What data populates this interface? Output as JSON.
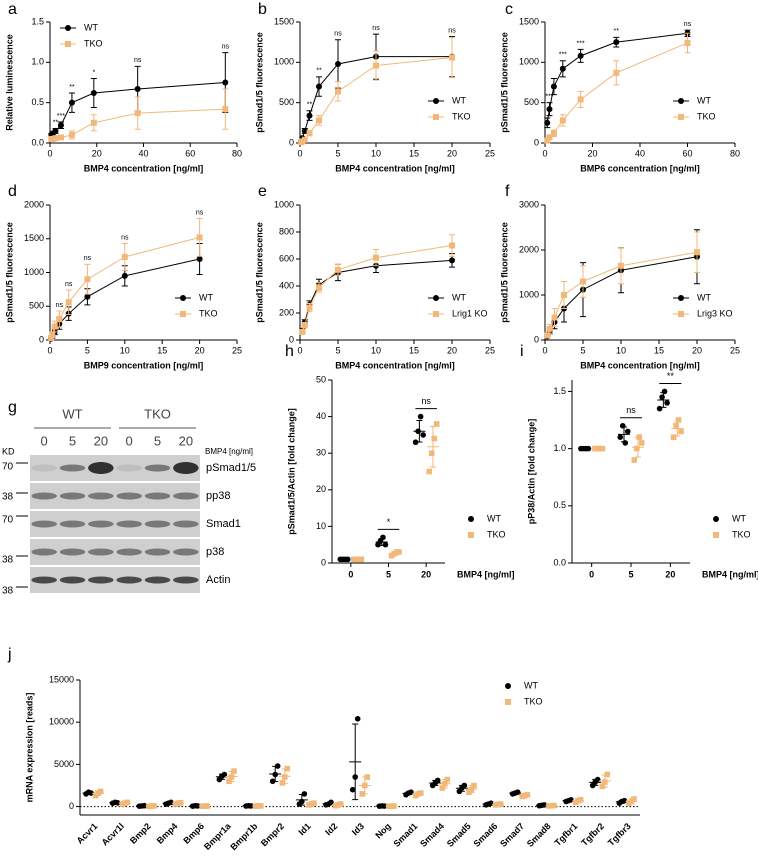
{
  "chart_data": [
    {
      "type": "line",
      "panel": "a",
      "x_label": "BMP4 concentration [ng/ml]",
      "y_label": "Relative luminescence",
      "xlim": [
        0,
        80
      ],
      "xticks": [
        0,
        20,
        40,
        60,
        80
      ],
      "ylim": [
        0,
        1.5
      ],
      "yticks": [
        {
          "value": 0,
          "label": "0.0"
        },
        0.5,
        {
          "value": 1,
          "label": "1.0"
        },
        1.5
      ],
      "x": [
        0.59,
        1.17,
        2.34,
        4.69,
        9.38,
        18.75,
        37.5,
        75
      ],
      "series": [
        {
          "name": "WT",
          "color": "#000000",
          "marker": "circle",
          "values": [
            0.1,
            0.12,
            0.15,
            0.22,
            0.5,
            0.62,
            0.67,
            0.75
          ],
          "errors": [
            0.02,
            0.02,
            0.03,
            0.04,
            0.12,
            0.18,
            0.28,
            0.37
          ]
        },
        {
          "name": "TKO",
          "color": "#f2b87a",
          "marker": "square",
          "values": [
            0.05,
            0.05,
            0.06,
            0.07,
            0.1,
            0.25,
            0.37,
            0.42
          ],
          "errors": [
            0.01,
            0.01,
            0.02,
            0.02,
            0.05,
            0.1,
            0.2,
            0.25
          ]
        }
      ],
      "annotations": [
        null,
        null,
        "**",
        "***",
        "**",
        "*",
        "ns",
        "ns"
      ],
      "legend": "upper left"
    },
    {
      "type": "line",
      "panel": "b",
      "x_label": "BMP4 concentration [ng/ml]",
      "y_label": "pSmad1/5 fluorescence",
      "xlim": [
        0,
        25
      ],
      "xticks": [
        0,
        5,
        10,
        15,
        20,
        25
      ],
      "ylim": [
        0,
        1500
      ],
      "yticks": [
        0,
        500,
        1000,
        1500
      ],
      "x": [
        0.16,
        0.31,
        0.63,
        1.25,
        2.5,
        5,
        10,
        20
      ],
      "series": [
        {
          "name": "WT",
          "color": "#000000",
          "marker": "circle",
          "values": [
            20,
            60,
            150,
            340,
            700,
            980,
            1070,
            1070
          ],
          "errors": [
            10,
            15,
            30,
            60,
            120,
            300,
            280,
            250
          ]
        },
        {
          "name": "TKO",
          "color": "#f2b87a",
          "marker": "square",
          "values": [
            10,
            20,
            40,
            120,
            280,
            640,
            960,
            1060
          ],
          "errors": [
            5,
            10,
            15,
            30,
            60,
            120,
            180,
            250
          ]
        }
      ],
      "annotations": [
        null,
        null,
        null,
        "**",
        "**",
        "ns",
        "ns",
        "ns"
      ],
      "legend": "lower right"
    },
    {
      "type": "line",
      "panel": "c",
      "x_label": "BMP6 concentration [ng/ml]",
      "y_label": "pSmad1/5 fluorescence",
      "xlim": [
        0,
        80
      ],
      "xticks": [
        0,
        20,
        40,
        60,
        80
      ],
      "ylim": [
        0,
        1500
      ],
      "yticks": [
        0,
        500,
        1000,
        1500
      ],
      "x": [
        0.94,
        1.88,
        3.75,
        7.5,
        15,
        30,
        60
      ],
      "series": [
        {
          "name": "WT",
          "color": "#000000",
          "marker": "circle",
          "values": [
            250,
            420,
            700,
            920,
            1080,
            1250,
            1360
          ],
          "errors": [
            60,
            80,
            100,
            100,
            80,
            60,
            40
          ]
        },
        {
          "name": "TKO",
          "color": "#f2b87a",
          "marker": "square",
          "values": [
            30,
            70,
            120,
            280,
            540,
            870,
            1240
          ],
          "errors": [
            20,
            30,
            40,
            70,
            100,
            150,
            120
          ]
        }
      ],
      "annotations": [
        null,
        "***",
        null,
        "***",
        "***",
        "**",
        "ns"
      ],
      "legend": "lower right"
    },
    {
      "type": "line",
      "panel": "d",
      "x_label": "BMP9 concentration [ng/ml]",
      "y_label": "pSmad1/5 fluorescence",
      "xlim": [
        0,
        25
      ],
      "xticks": [
        0,
        5,
        10,
        15,
        20,
        25
      ],
      "ylim": [
        0,
        2000
      ],
      "yticks": [
        0,
        500,
        1000,
        1500,
        2000
      ],
      "x": [
        0.16,
        0.31,
        0.63,
        1.25,
        2.5,
        5,
        10,
        20
      ],
      "series": [
        {
          "name": "WT",
          "color": "#000000",
          "marker": "circle",
          "values": [
            20,
            50,
            120,
            240,
            390,
            640,
            950,
            1200
          ],
          "errors": [
            10,
            20,
            40,
            80,
            100,
            120,
            150,
            230
          ]
        },
        {
          "name": "TKO",
          "color": "#f2b87a",
          "marker": "square",
          "values": [
            30,
            80,
            200,
            310,
            560,
            900,
            1230,
            1520
          ],
          "errors": [
            20,
            40,
            80,
            120,
            180,
            220,
            200,
            280
          ]
        }
      ],
      "annotations": [
        null,
        null,
        null,
        "ns",
        "ns",
        "ns",
        "ns",
        "ns"
      ],
      "legend": "lower right"
    },
    {
      "type": "line",
      "panel": "e",
      "x_label": "BMP4 concentration [ng/ml]",
      "y_label": "pSmad1/5 fluorescence",
      "xlim": [
        0,
        25
      ],
      "xticks": [
        0,
        5,
        10,
        15,
        20,
        25
      ],
      "ylim": [
        0,
        1000
      ],
      "yticks": [
        0,
        200,
        400,
        600,
        800,
        1000
      ],
      "x": [
        0.31,
        0.63,
        1.25,
        2.5,
        5,
        10,
        20
      ],
      "series": [
        {
          "name": "WT",
          "color": "#000000",
          "marker": "circle",
          "values": [
            70,
            130,
            260,
            410,
            500,
            550,
            590
          ],
          "errors": [
            15,
            20,
            30,
            40,
            60,
            50,
            50
          ]
        },
        {
          "name": "Lrig1 KO",
          "color": "#f2b87a",
          "marker": "square",
          "values": [
            60,
            110,
            240,
            390,
            520,
            610,
            700
          ],
          "errors": [
            15,
            20,
            30,
            35,
            40,
            60,
            80
          ]
        }
      ],
      "legend": "lower right"
    },
    {
      "type": "line",
      "panel": "f",
      "x_label": "BMP4 concentration [ng/ml]",
      "y_label": "pSmad1/5 fluorescence",
      "xlim": [
        0,
        25
      ],
      "xticks": [
        0,
        5,
        10,
        15,
        20,
        25
      ],
      "ylim": [
        0,
        3000
      ],
      "yticks": [
        0,
        1000,
        2000,
        3000
      ],
      "x": [
        0.31,
        0.63,
        1.25,
        2.5,
        5,
        10,
        20
      ],
      "series": [
        {
          "name": "WT",
          "color": "#000000",
          "marker": "circle",
          "values": [
            80,
            200,
            400,
            700,
            1120,
            1550,
            1850
          ],
          "errors": [
            30,
            60,
            150,
            300,
            600,
            500,
            600
          ]
        },
        {
          "name": "Lrig3 KO",
          "color": "#f2b87a",
          "marker": "square",
          "values": [
            100,
            250,
            500,
            1000,
            1300,
            1650,
            1950
          ],
          "errors": [
            30,
            100,
            200,
            300,
            350,
            400,
            450
          ]
        }
      ],
      "legend": "lower right"
    },
    {
      "type": "dot",
      "panel": "h",
      "x_label": "BMP4 [ng/ml]",
      "y_label": "pSmad1/5/Actin [fold change]",
      "categories": [
        "0",
        "5",
        "20"
      ],
      "ylim": [
        0,
        50
      ],
      "yticks": [
        0,
        10,
        20,
        30,
        40,
        50
      ],
      "series": [
        {
          "name": "WT",
          "color": "#000000",
          "marker": "circle",
          "values": [
            [
              1,
              1,
              1,
              1
            ],
            [
              5,
              6,
              7,
              5
            ],
            [
              33,
              36,
              40,
              35
            ]
          ]
        },
        {
          "name": "TKO",
          "color": "#f2b87a",
          "marker": "square",
          "values": [
            [
              1,
              1,
              1,
              1
            ],
            [
              2,
              2.5,
              3,
              3
            ],
            [
              25,
              30,
              34,
              38
            ]
          ]
        }
      ],
      "annotations": [
        null,
        "*",
        "ns"
      ],
      "legend": "right"
    },
    {
      "type": "dot",
      "panel": "i",
      "x_label": "BMP4 [ng/ml]",
      "y_label": "pP38/Actin [fold change]",
      "categories": [
        "0",
        "5",
        "20"
      ],
      "ylim": [
        0,
        1.6
      ],
      "yticks": [
        {
          "value": 0,
          "label": "0.0"
        },
        0.5,
        {
          "value": 1,
          "label": "1.0"
        },
        1.5
      ],
      "series": [
        {
          "name": "WT",
          "color": "#000000",
          "marker": "circle",
          "values": [
            [
              1,
              1,
              1,
              1
            ],
            [
              1.1,
              1.2,
              1.05,
              1.15
            ],
            [
              1.35,
              1.45,
              1.5,
              1.4
            ]
          ]
        },
        {
          "name": "TKO",
          "color": "#f2b87a",
          "marker": "square",
          "values": [
            [
              1,
              1,
              1,
              1
            ],
            [
              0.9,
              1.0,
              1.1,
              1.05
            ],
            [
              1.1,
              1.2,
              1.25,
              1.15
            ]
          ]
        }
      ],
      "annotations": [
        null,
        "ns",
        "**"
      ],
      "legend": "right"
    },
    {
      "type": "dot",
      "panel": "j",
      "y_label": "mRNA expression [reads]",
      "categories": [
        "Acvr1",
        "Acvr1l",
        "Bmp2",
        "Bmp4",
        "Bmp6",
        "Bmpr1a",
        "Bmpr1b",
        "Bmpr2",
        "Id1",
        "Id2",
        "Id3",
        "Nog",
        "Smad1",
        "Smad4",
        "Smad5",
        "Smad6",
        "Smad7",
        "Smad8",
        "Tgfbr1",
        "Tgfbr2",
        "Tgfbr3"
      ],
      "ylim": [
        -1000,
        15000
      ],
      "yticks": [
        0,
        5000,
        10000,
        15000
      ],
      "zero_line": true,
      "rotate_labels": true,
      "series": [
        {
          "name": "WT",
          "color": "#000000",
          "marker": "circle",
          "values": [
            [
              1500,
              1700,
              1600
            ],
            [
              400,
              500,
              450
            ],
            [
              50,
              80,
              100
            ],
            [
              300,
              400,
              500
            ],
            [
              50,
              100,
              80
            ],
            [
              3200,
              3600,
              3800
            ],
            [
              60,
              100,
              80
            ],
            [
              3000,
              3800,
              4800
            ],
            [
              300,
              600,
              1500
            ],
            [
              200,
              300,
              500
            ],
            [
              2000,
              3500,
              10400
            ],
            [
              50,
              80,
              60
            ],
            [
              1400,
              1600,
              1700
            ],
            [
              2500,
              2800,
              3100
            ],
            [
              1800,
              2200,
              2500
            ],
            [
              200,
              300,
              400
            ],
            [
              1500,
              1600,
              1700
            ],
            [
              100,
              150,
              200
            ],
            [
              600,
              700,
              800
            ],
            [
              2500,
              2900,
              3200
            ],
            [
              400,
              600,
              700
            ]
          ]
        },
        {
          "name": "TKO",
          "color": "#f2b87a",
          "marker": "square",
          "values": [
            [
              1300,
              1600,
              1800
            ],
            [
              300,
              400,
              500
            ],
            [
              30,
              60,
              80
            ],
            [
              300,
              400,
              450
            ],
            [
              40,
              70,
              60
            ],
            [
              3000,
              3500,
              4200
            ],
            [
              50,
              80,
              70
            ],
            [
              2800,
              3500,
              4500
            ],
            [
              200,
              300,
              400
            ],
            [
              100,
              200,
              300
            ],
            [
              1500,
              2500,
              3500
            ],
            [
              40,
              60,
              50
            ],
            [
              1300,
              1500,
              1600
            ],
            [
              2200,
              2700,
              3200
            ],
            [
              1700,
              2000,
              2500
            ],
            [
              200,
              250,
              300
            ],
            [
              1200,
              1300,
              1400
            ],
            [
              80,
              100,
              120
            ],
            [
              500,
              700,
              800
            ],
            [
              2400,
              2900,
              3800
            ],
            [
              400,
              600,
              900
            ]
          ]
        }
      ],
      "legend": "upper right"
    }
  ],
  "blot": {
    "panel": "g",
    "groups": [
      "WT",
      "TKO"
    ],
    "doses": [
      "0",
      "5",
      "20",
      "0",
      "5",
      "20"
    ],
    "dose_label": "BMP4 [ng/ml]",
    "kd_label": "KD",
    "rows": [
      "pSmad1/5",
      "pp38",
      "Smad1",
      "p38",
      "Actin"
    ],
    "markers": [
      "70",
      "38",
      "70",
      "38",
      "38"
    ]
  }
}
